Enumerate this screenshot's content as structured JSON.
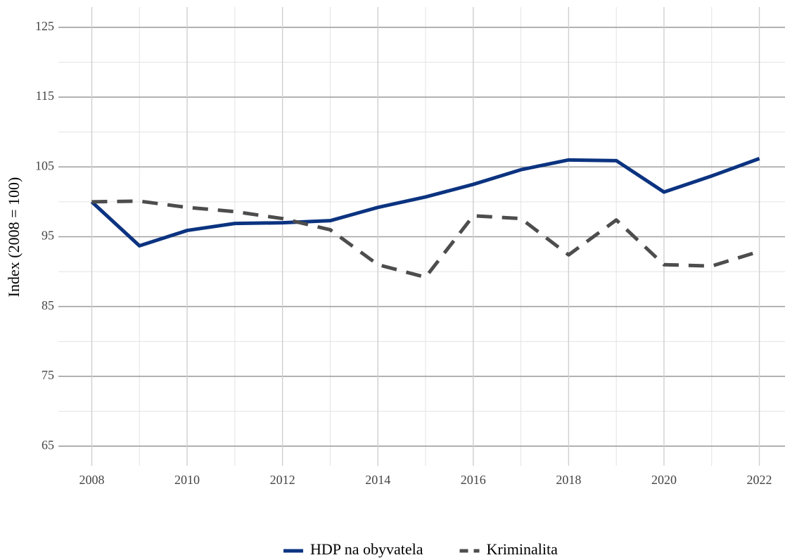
{
  "chart_data": {
    "type": "line",
    "x": [
      2008,
      2009,
      2010,
      2011,
      2012,
      2013,
      2014,
      2015,
      2016,
      2017,
      2018,
      2019,
      2020,
      2021,
      2022
    ],
    "series": [
      {
        "name": "HDP na obyvatela",
        "color": "#0b3380",
        "dash": "solid",
        "values": [
          100,
          93.7,
          95.9,
          96.9,
          97.0,
          97.3,
          99.2,
          100.7,
          102.5,
          104.6,
          106.0,
          105.9,
          101.4,
          103.7,
          106.2
        ]
      },
      {
        "name": "Kriminalita",
        "color": "#4d4d4d",
        "dash": "dashed",
        "values": [
          100,
          100.1,
          99.2,
          98.6,
          97.6,
          96.0,
          91.0,
          89.2,
          98.0,
          97.6,
          92.4,
          97.4,
          91.0,
          90.8,
          92.9
        ]
      }
    ],
    "ylabel": "Index (2008 = 100)",
    "xlim": [
      2007.3,
      2022.7
    ],
    "ylim": [
      62.2,
      127.9
    ],
    "xticks": [
      2008,
      2010,
      2012,
      2014,
      2016,
      2018,
      2020,
      2022
    ],
    "yticks": [
      65,
      75,
      85,
      95,
      105,
      115,
      125
    ],
    "xminorticks": [
      2009,
      2011,
      2013,
      2015,
      2017,
      2019,
      2021
    ],
    "yminorticks": [
      70,
      80,
      90,
      100,
      110,
      120
    ],
    "grid": true,
    "legend": "bottom"
  }
}
